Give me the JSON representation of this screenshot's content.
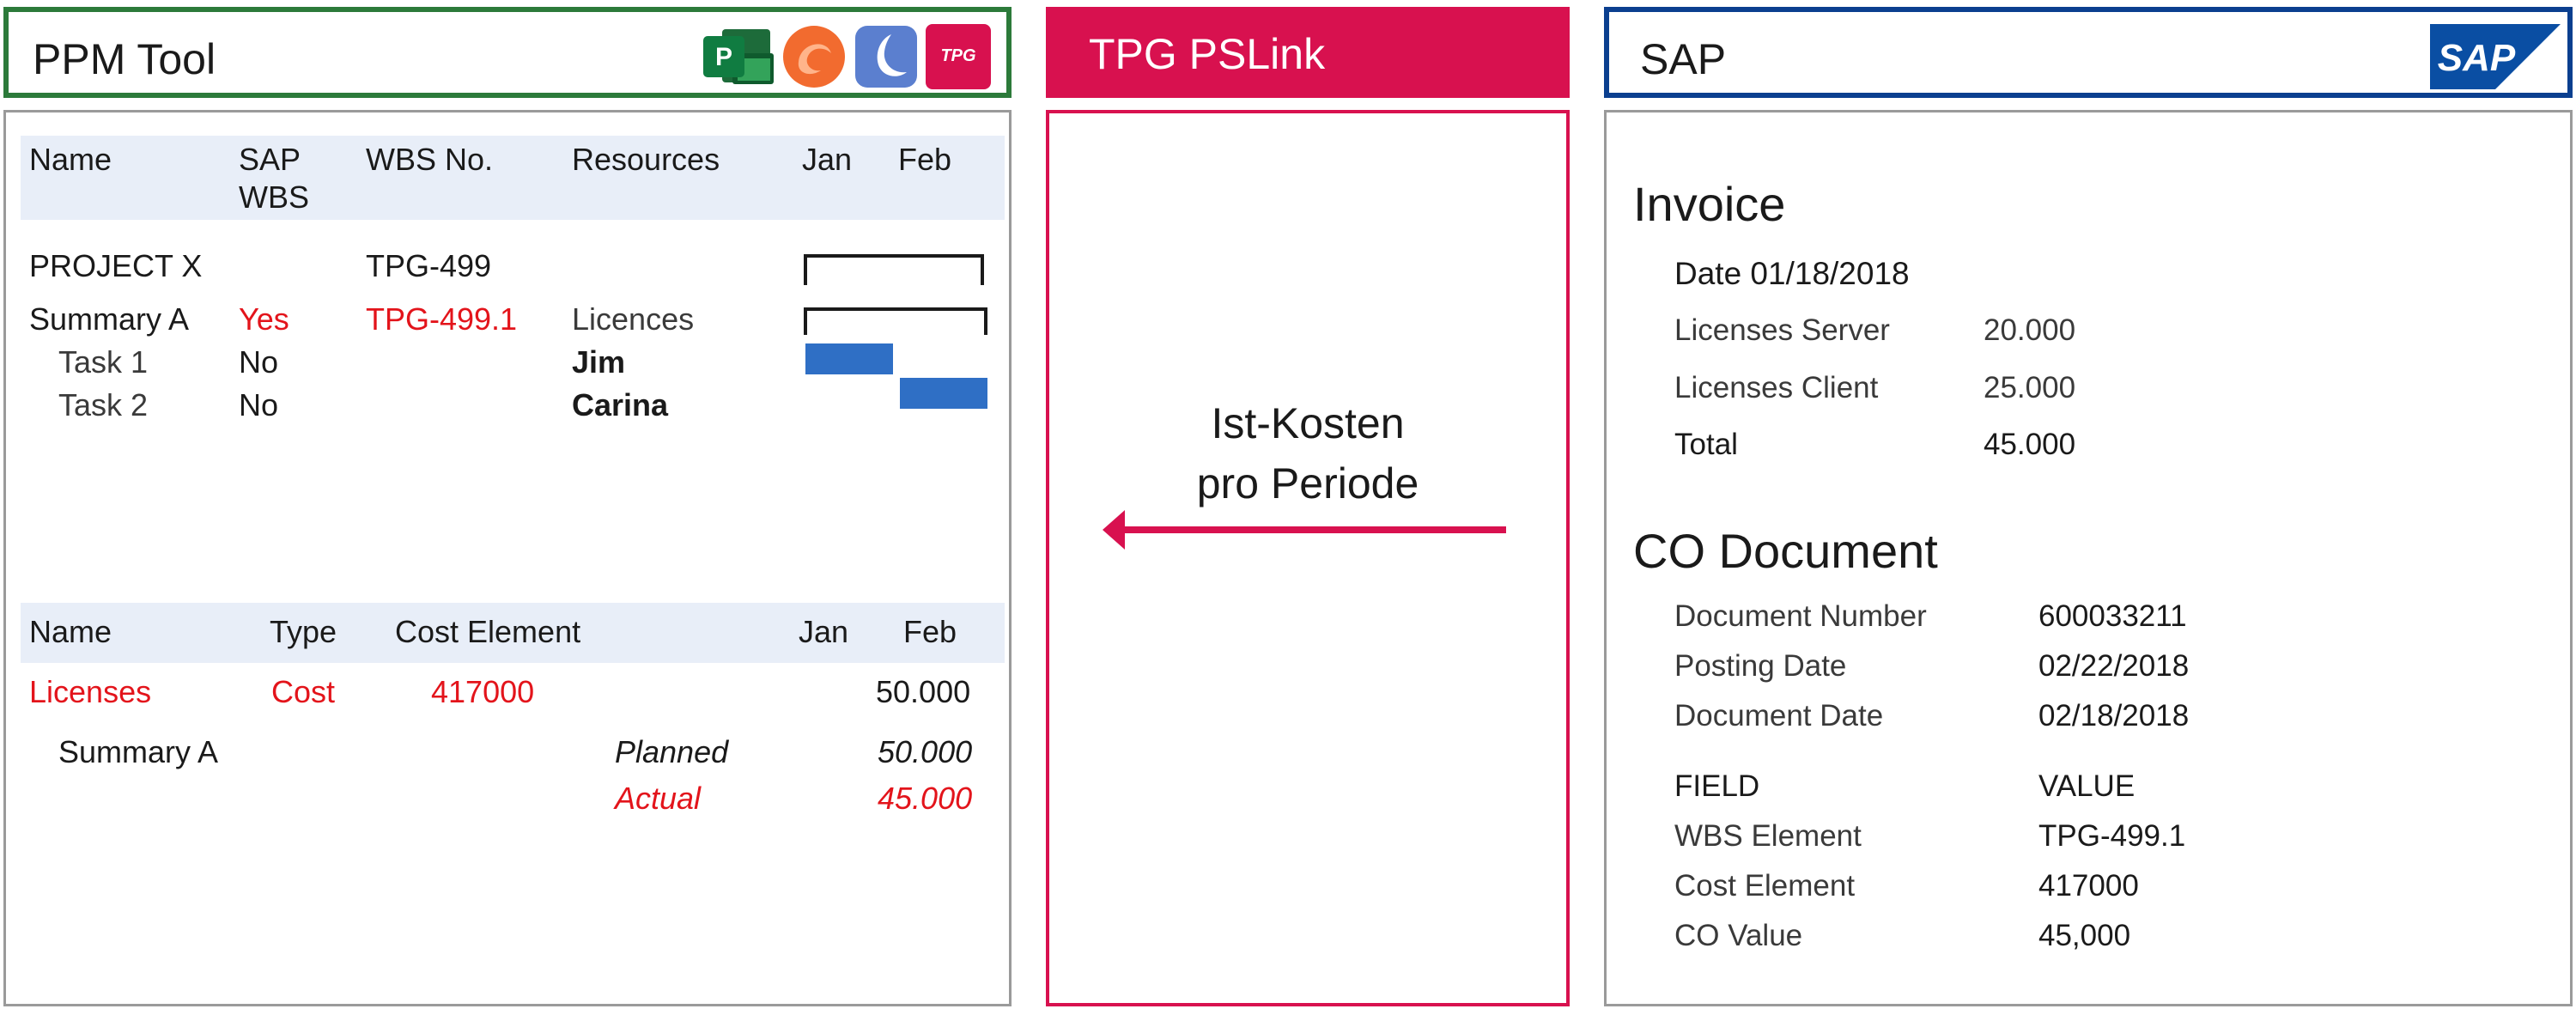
{
  "colors": {
    "ppm_border": "#2c7a3a",
    "pslink_accent": "#d8114f",
    "sap_border": "#0b3f8f",
    "gantt_bar": "#2f6fc5",
    "highlight_red": "#e3141b"
  },
  "ppm": {
    "title": "PPM Tool",
    "app_icons": [
      "ms-project-icon",
      "app-swirl-icon",
      "app-moon-icon",
      "tpg-logo-icon"
    ],
    "tpg_logo_text": "TPG",
    "schedule_headers": {
      "name": "Name",
      "sap_wbs": "SAP",
      "sap_wbs_2": "WBS",
      "wbs_no": "WBS No.",
      "resources": "Resources",
      "jan": "Jan",
      "feb": "Feb"
    },
    "schedule_rows": [
      {
        "name": "PROJECT X",
        "sap_wbs": "",
        "wbs_no": "TPG-499",
        "resource": ""
      },
      {
        "name": "Summary A",
        "sap_wbs": "Yes",
        "wbs_no": "TPG-499.1",
        "resource": "Licences"
      },
      {
        "name": "Task 1",
        "sap_wbs": "No",
        "wbs_no": "",
        "resource": "Jim"
      },
      {
        "name": "Task 2",
        "sap_wbs": "No",
        "wbs_no": "",
        "resource": "Carina"
      }
    ],
    "cost_headers": {
      "name": "Name",
      "type": "Type",
      "cost_element": "Cost Element",
      "jan": "Jan",
      "feb": "Feb"
    },
    "cost_row": {
      "name": "Licenses",
      "type": "Cost",
      "cost_element": "417000",
      "feb": "50.000"
    },
    "summary_row": {
      "name": "Summary A",
      "planned_label": "Planned",
      "planned_value": "50.000",
      "actual_label": "Actual",
      "actual_value": "45.000"
    }
  },
  "pslink": {
    "title": "TPG PSLink",
    "caption_line1": "Ist-Kosten",
    "caption_line2": "pro Periode"
  },
  "sap": {
    "title": "SAP",
    "logo_text": "SAP",
    "invoice": {
      "heading": "Invoice",
      "date": "Date 01/18/2018",
      "lines": [
        {
          "label": "Licenses Server",
          "value": "20.000"
        },
        {
          "label": "Licenses Client",
          "value": "25.000"
        }
      ],
      "total_label": "Total",
      "total_value": "45.000"
    },
    "co_document": {
      "heading": "CO Document",
      "info": [
        {
          "label": "Document Number",
          "value": "600033211"
        },
        {
          "label": "Posting Date",
          "value": "02/22/2018"
        },
        {
          "label": "Document Date",
          "value": "02/18/2018"
        }
      ],
      "field_header": "FIELD",
      "value_header": "VALUE",
      "fields": [
        {
          "label": "WBS Element",
          "value": "TPG-499.1"
        },
        {
          "label": "Cost Element",
          "value": "417000"
        },
        {
          "label": "CO Value",
          "value": "45,000"
        }
      ]
    }
  }
}
